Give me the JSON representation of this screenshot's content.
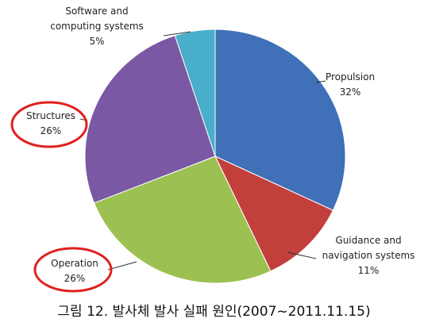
{
  "chart_data": {
    "type": "pie",
    "categories": [
      "Propulsion",
      "Guidance and navigation systems",
      "Operation",
      "Structures",
      "Software and computing systems"
    ],
    "values": [
      32,
      11,
      26,
      26,
      5
    ],
    "value_labels": [
      "32%",
      "11%",
      "26%",
      "26%",
      "5%"
    ],
    "colors": [
      "#3f70b8",
      "#c33f3c",
      "#9cc152",
      "#7a58a3",
      "#49aecb"
    ],
    "caption": "그림 12. 발사체 발사 실패 원인(2007~2011.11.15)"
  }
}
